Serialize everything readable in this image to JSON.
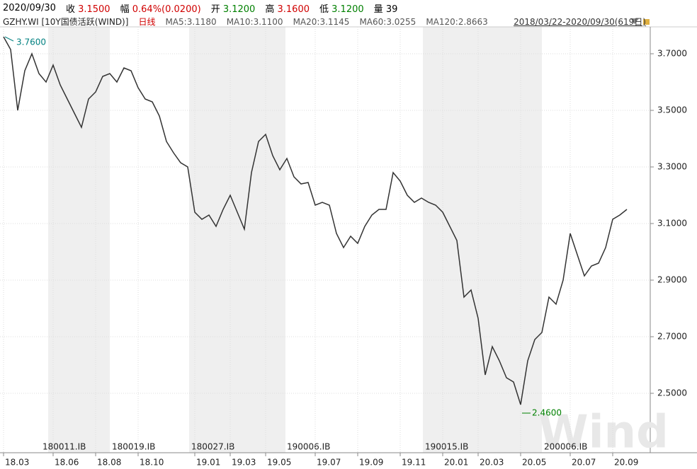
{
  "header": {
    "date": "2020/09/30",
    "items": [
      {
        "label": "收",
        "value": "3.1500",
        "color": "#d00000"
      },
      {
        "label": "幅",
        "value": "0.64%(0.0200)",
        "color": "#d00000"
      },
      {
        "label": "开",
        "value": "3.1200",
        "color": "#008000"
      },
      {
        "label": "高",
        "value": "3.1600",
        "color": "#d00000"
      },
      {
        "label": "低",
        "value": "3.1200",
        "color": "#008000"
      },
      {
        "label": "量",
        "value": "39",
        "color": "#000000"
      }
    ],
    "instrument": "GZHY.WI [10Y国债活跃(WIND)]",
    "period": "日线",
    "indicators": [
      "MA5:3.1180",
      "MA10:3.1100",
      "MA20:3.1145",
      "MA60:3.0255",
      "MA120:2.8663"
    ],
    "range": "2018/03/22-2020/09/30(619日)"
  },
  "chart_data": {
    "type": "line",
    "categories": [
      "18.03",
      null,
      null,
      null,
      null,
      null,
      null,
      "18.06",
      null,
      null,
      null,
      null,
      null,
      "18.08",
      null,
      null,
      null,
      null,
      null,
      "18.10",
      null,
      null,
      null,
      null,
      null,
      null,
      null,
      "19.01",
      null,
      null,
      null,
      null,
      "19.03",
      null,
      null,
      null,
      null,
      "19.05",
      null,
      null,
      null,
      null,
      null,
      null,
      "19.07",
      null,
      null,
      null,
      null,
      null,
      "19.09",
      null,
      null,
      null,
      null,
      null,
      "19.11",
      null,
      null,
      null,
      null,
      null,
      "20.01",
      null,
      null,
      null,
      null,
      "20.03",
      null,
      null,
      null,
      null,
      null,
      "20.05",
      null,
      null,
      null,
      null,
      null,
      null,
      "20.07",
      null,
      null,
      null,
      null,
      null,
      "20.09",
      null,
      null
    ],
    "values": [
      3.76,
      3.715,
      3.5,
      3.64,
      3.7,
      3.63,
      3.6,
      3.66,
      3.59,
      3.54,
      3.49,
      3.44,
      3.54,
      3.565,
      3.62,
      3.63,
      3.6,
      3.65,
      3.64,
      3.58,
      3.54,
      3.53,
      3.48,
      3.39,
      3.35,
      3.315,
      3.3,
      3.14,
      3.115,
      3.13,
      3.09,
      3.15,
      3.2,
      3.14,
      3.08,
      3.28,
      3.39,
      3.415,
      3.34,
      3.29,
      3.33,
      3.265,
      3.24,
      3.245,
      3.165,
      3.175,
      3.165,
      3.065,
      3.015,
      3.055,
      3.03,
      3.09,
      3.13,
      3.15,
      3.15,
      3.28,
      3.25,
      3.2,
      3.175,
      3.19,
      3.175,
      3.165,
      3.14,
      3.09,
      3.04,
      2.84,
      2.865,
      2.765,
      2.565,
      2.665,
      2.615,
      2.555,
      2.54,
      2.46,
      2.615,
      2.69,
      2.715,
      2.84,
      2.815,
      2.9,
      3.065,
      2.99,
      2.915,
      2.95,
      2.96,
      3.015,
      3.115,
      3.13,
      3.15
    ],
    "color": "#333333",
    "ylim": [
      2.29,
      3.795
    ],
    "yticks": [
      {
        "value": 2.5,
        "label": "2.5000"
      },
      {
        "value": 2.7,
        "label": "2.7000"
      },
      {
        "value": 2.9,
        "label": "2.9000"
      },
      {
        "value": 3.1,
        "label": "3.1000"
      },
      {
        "value": 3.3,
        "label": "3.3000"
      },
      {
        "value": 3.5,
        "label": "3.5000"
      },
      {
        "value": 3.7,
        "label": "3.7000"
      }
    ],
    "grid": true,
    "max_label": "3.7600",
    "min_label": "2.4600",
    "max_color": "#008080",
    "min_color": "#008000",
    "contracts": [
      "180011.IB",
      "180019.IB",
      "180027.IB",
      "190006.IB",
      "190015.IB",
      "200006.IB"
    ],
    "watermark": "Wind"
  }
}
